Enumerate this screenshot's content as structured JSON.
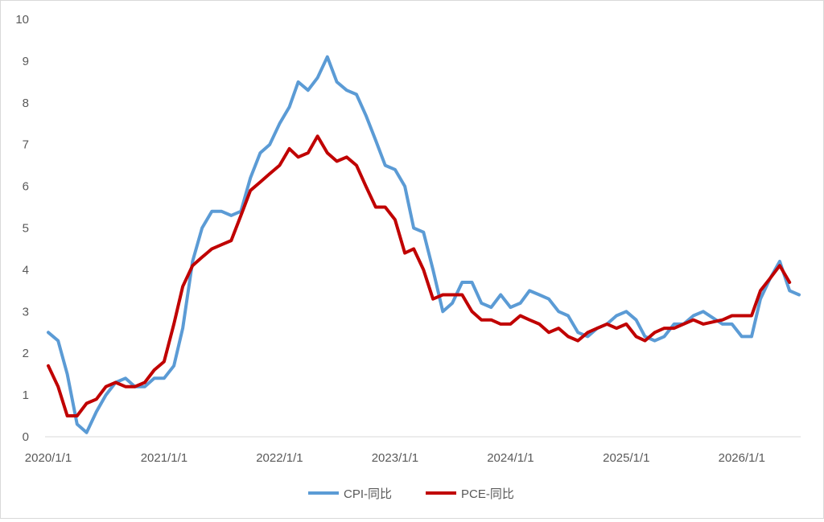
{
  "chart_data": {
    "type": "line",
    "title": "",
    "xlabel": "",
    "ylabel": "",
    "ylim": [
      0,
      10
    ],
    "yticks": [
      "0",
      "1",
      "2",
      "3",
      "4",
      "5",
      "6",
      "7",
      "8",
      "9",
      "10"
    ],
    "xlim": [
      "2020-01-01",
      "2026-07-01"
    ],
    "xtick_dates": [
      "2020-01-01",
      "2021-01-01",
      "2022-01-01",
      "2023-01-01",
      "2024-01-01",
      "2025-01-01",
      "2026-01-01"
    ],
    "xtick_labels": [
      "2020/1/1",
      "2021/1/1",
      "2022/1/1",
      "2023/1/1",
      "2024/1/1",
      "2025/1/1",
      "2026/1/1"
    ],
    "grid": false,
    "legend": "bottom",
    "series": [
      {
        "name": "CPI-同比",
        "color": "#5b9bd5",
        "points": [
          [
            "2020-01-01",
            2.5
          ],
          [
            "2020-02-01",
            2.3
          ],
          [
            "2020-03-01",
            1.5
          ],
          [
            "2020-04-01",
            0.3
          ],
          [
            "2020-05-01",
            0.1
          ],
          [
            "2020-06-01",
            0.6
          ],
          [
            "2020-07-01",
            1.0
          ],
          [
            "2020-08-01",
            1.3
          ],
          [
            "2020-09-01",
            1.4
          ],
          [
            "2020-10-01",
            1.2
          ],
          [
            "2020-11-01",
            1.2
          ],
          [
            "2020-12-01",
            1.4
          ],
          [
            "2021-01-01",
            1.4
          ],
          [
            "2021-02-01",
            1.7
          ],
          [
            "2021-03-01",
            2.6
          ],
          [
            "2021-04-01",
            4.2
          ],
          [
            "2021-05-01",
            5.0
          ],
          [
            "2021-06-01",
            5.4
          ],
          [
            "2021-07-01",
            5.4
          ],
          [
            "2021-08-01",
            5.3
          ],
          [
            "2021-09-01",
            5.4
          ],
          [
            "2021-10-01",
            6.2
          ],
          [
            "2021-11-01",
            6.8
          ],
          [
            "2021-12-01",
            7.0
          ],
          [
            "2022-01-01",
            7.5
          ],
          [
            "2022-02-01",
            7.9
          ],
          [
            "2022-03-01",
            8.5
          ],
          [
            "2022-04-01",
            8.3
          ],
          [
            "2022-05-01",
            8.6
          ],
          [
            "2022-06-01",
            9.1
          ],
          [
            "2022-07-01",
            8.5
          ],
          [
            "2022-08-01",
            8.3
          ],
          [
            "2022-09-01",
            8.2
          ],
          [
            "2022-10-01",
            7.7
          ],
          [
            "2022-11-01",
            7.1
          ],
          [
            "2022-12-01",
            6.5
          ],
          [
            "2023-01-01",
            6.4
          ],
          [
            "2023-02-01",
            6.0
          ],
          [
            "2023-03-01",
            5.0
          ],
          [
            "2023-04-01",
            4.9
          ],
          [
            "2023-05-01",
            4.0
          ],
          [
            "2023-06-01",
            3.0
          ],
          [
            "2023-07-01",
            3.2
          ],
          [
            "2023-08-01",
            3.7
          ],
          [
            "2023-09-01",
            3.7
          ],
          [
            "2023-10-01",
            3.2
          ],
          [
            "2023-11-01",
            3.1
          ],
          [
            "2023-12-01",
            3.4
          ],
          [
            "2024-01-01",
            3.1
          ],
          [
            "2024-02-01",
            3.2
          ],
          [
            "2024-03-01",
            3.5
          ],
          [
            "2024-04-01",
            3.4
          ],
          [
            "2024-05-01",
            3.3
          ],
          [
            "2024-06-01",
            3.0
          ],
          [
            "2024-07-01",
            2.9
          ],
          [
            "2024-08-01",
            2.5
          ],
          [
            "2024-09-01",
            2.4
          ],
          [
            "2024-10-01",
            2.6
          ],
          [
            "2024-11-01",
            2.7
          ],
          [
            "2024-12-01",
            2.9
          ],
          [
            "2025-01-01",
            3.0
          ],
          [
            "2025-02-01",
            2.8
          ],
          [
            "2025-03-01",
            2.4
          ],
          [
            "2025-04-01",
            2.3
          ],
          [
            "2025-05-01",
            2.4
          ],
          [
            "2025-06-01",
            2.7
          ],
          [
            "2025-07-01",
            2.7
          ],
          [
            "2025-08-01",
            2.9
          ],
          [
            "2025-09-01",
            3.0
          ],
          [
            "2025-10-01",
            2.85
          ],
          [
            "2025-11-01",
            2.7
          ],
          [
            "2025-12-01",
            2.7
          ],
          [
            "2026-01-01",
            2.4
          ],
          [
            "2026-02-01",
            2.4
          ],
          [
            "2026-03-01",
            3.3
          ],
          [
            "2026-04-01",
            3.8
          ],
          [
            "2026-05-01",
            4.2
          ],
          [
            "2026-06-01",
            3.5
          ],
          [
            "2026-07-01",
            3.4
          ]
        ]
      },
      {
        "name": "PCE-同比",
        "color": "#c00000",
        "points": [
          [
            "2020-01-01",
            1.7
          ],
          [
            "2020-02-01",
            1.2
          ],
          [
            "2020-03-01",
            0.5
          ],
          [
            "2020-04-01",
            0.5
          ],
          [
            "2020-05-01",
            0.8
          ],
          [
            "2020-06-01",
            0.9
          ],
          [
            "2020-07-01",
            1.2
          ],
          [
            "2020-08-01",
            1.3
          ],
          [
            "2020-09-01",
            1.2
          ],
          [
            "2020-10-01",
            1.2
          ],
          [
            "2020-11-01",
            1.3
          ],
          [
            "2020-12-01",
            1.6
          ],
          [
            "2021-01-01",
            1.8
          ],
          [
            "2021-02-01",
            2.7
          ],
          [
            "2021-03-01",
            3.6
          ],
          [
            "2021-04-01",
            4.1
          ],
          [
            "2021-05-01",
            4.3
          ],
          [
            "2021-06-01",
            4.5
          ],
          [
            "2021-07-01",
            4.6
          ],
          [
            "2021-08-01",
            4.7
          ],
          [
            "2021-09-01",
            5.3
          ],
          [
            "2021-10-01",
            5.9
          ],
          [
            "2021-11-01",
            6.1
          ],
          [
            "2021-12-01",
            6.3
          ],
          [
            "2022-01-01",
            6.5
          ],
          [
            "2022-02-01",
            6.9
          ],
          [
            "2022-03-01",
            6.7
          ],
          [
            "2022-04-01",
            6.8
          ],
          [
            "2022-05-01",
            7.2
          ],
          [
            "2022-06-01",
            6.8
          ],
          [
            "2022-07-01",
            6.6
          ],
          [
            "2022-08-01",
            6.7
          ],
          [
            "2022-09-01",
            6.5
          ],
          [
            "2022-10-01",
            6.0
          ],
          [
            "2022-11-01",
            5.5
          ],
          [
            "2022-12-01",
            5.5
          ],
          [
            "2023-01-01",
            5.2
          ],
          [
            "2023-02-01",
            4.4
          ],
          [
            "2023-03-01",
            4.5
          ],
          [
            "2023-04-01",
            4.0
          ],
          [
            "2023-05-01",
            3.3
          ],
          [
            "2023-06-01",
            3.4
          ],
          [
            "2023-07-01",
            3.4
          ],
          [
            "2023-08-01",
            3.4
          ],
          [
            "2023-09-01",
            3.0
          ],
          [
            "2023-10-01",
            2.8
          ],
          [
            "2023-11-01",
            2.8
          ],
          [
            "2023-12-01",
            2.7
          ],
          [
            "2024-01-01",
            2.7
          ],
          [
            "2024-02-01",
            2.9
          ],
          [
            "2024-03-01",
            2.8
          ],
          [
            "2024-04-01",
            2.7
          ],
          [
            "2024-05-01",
            2.5
          ],
          [
            "2024-06-01",
            2.6
          ],
          [
            "2024-07-01",
            2.4
          ],
          [
            "2024-08-01",
            2.3
          ],
          [
            "2024-09-01",
            2.5
          ],
          [
            "2024-10-01",
            2.6
          ],
          [
            "2024-11-01",
            2.7
          ],
          [
            "2024-12-01",
            2.6
          ],
          [
            "2025-01-01",
            2.7
          ],
          [
            "2025-02-01",
            2.4
          ],
          [
            "2025-03-01",
            2.3
          ],
          [
            "2025-04-01",
            2.5
          ],
          [
            "2025-05-01",
            2.6
          ],
          [
            "2025-06-01",
            2.6
          ],
          [
            "2025-07-01",
            2.7
          ],
          [
            "2025-08-01",
            2.8
          ],
          [
            "2025-09-01",
            2.7
          ],
          [
            "2025-10-01",
            2.75
          ],
          [
            "2025-11-01",
            2.8
          ],
          [
            "2025-12-01",
            2.9
          ],
          [
            "2026-01-01",
            2.9
          ],
          [
            "2026-02-01",
            2.9
          ],
          [
            "2026-03-01",
            3.5
          ],
          [
            "2026-04-01",
            3.8
          ],
          [
            "2026-05-01",
            4.1
          ],
          [
            "2026-06-01",
            3.7
          ]
        ]
      }
    ]
  }
}
